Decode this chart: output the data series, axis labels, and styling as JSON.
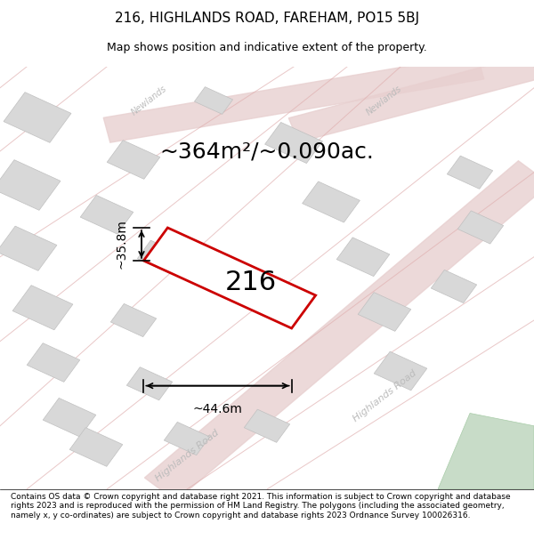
{
  "title_line1": "216, HIGHLANDS ROAD, FAREHAM, PO15 5BJ",
  "title_line2": "Map shows position and indicative extent of the property.",
  "area_text": "~364m²/~0.090ac.",
  "property_number": "216",
  "width_label": "~44.6m",
  "height_label": "~35.8m",
  "footer_text": "Contains OS data © Crown copyright and database right 2021. This information is subject to Crown copyright and database rights 2023 and is reproduced with the permission of HM Land Registry. The polygons (including the associated geometry, namely x, y co-ordinates) are subject to Crown copyright and database rights 2023 Ordnance Survey 100026316.",
  "bg_color": "#f5f5f5",
  "map_bg": "#f0eeee",
  "road_color_light": "#e8c8c8",
  "road_color_dark": "#d4a0a0",
  "building_color": "#d8d8d8",
  "building_edge": "#b8b8b8",
  "property_fill": "white",
  "property_edge": "#cc0000",
  "dim_line_color": "black",
  "road_label_color": "#aaaaaa",
  "title_fontsize": 11,
  "subtitle_fontsize": 9,
  "area_fontsize": 18,
  "number_fontsize": 22,
  "dim_fontsize": 10,
  "footer_fontsize": 7
}
